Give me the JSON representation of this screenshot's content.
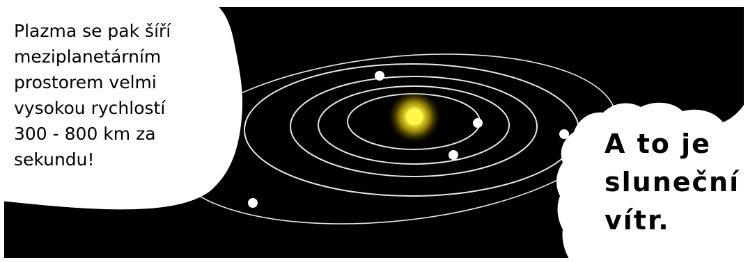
{
  "panel": {
    "speech_bubble_text": "Plazma se pak šíří\nmeziplanetárním\nprostorem velmi\nvysokou rychlostí\n300 - 800 km za\nsekundu!",
    "shout_bubble_text": "A to je\nsluneční\nvítr."
  },
  "colors": {
    "space": "#000000",
    "sun_core": "#fff84a",
    "sun_glow": "#b59d00",
    "orbit_line": "#e8e8e8",
    "planet": "#ffffff",
    "bubble": "#ffffff"
  },
  "illustration": {
    "subject": "solar-system-with-sun",
    "orbit_count": 5,
    "planet_count": 5
  }
}
